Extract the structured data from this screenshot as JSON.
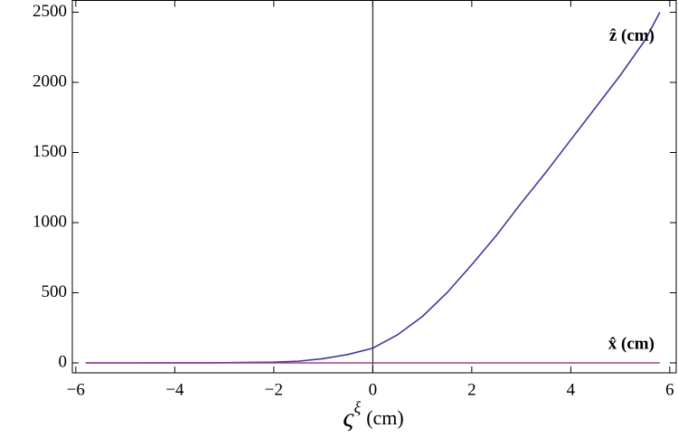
{
  "chart_data": {
    "type": "line",
    "x": [
      -5.8,
      -5,
      -4,
      -3,
      -2,
      -1.5,
      -1,
      -0.5,
      0,
      0.5,
      1,
      1.5,
      2,
      2.5,
      3,
      3.5,
      4,
      4.5,
      5,
      5.5,
      5.8
    ],
    "series": [
      {
        "name": "ẑ (cm)",
        "color": "#3c3a9a",
        "label_color": "#8a70d6",
        "values": [
          0,
          0,
          0.5,
          1.5,
          5,
          12,
          30,
          60,
          105,
          200,
          330,
          500,
          700,
          910,
          1140,
          1360,
          1590,
          1820,
          2050,
          2300,
          2500
        ]
      },
      {
        "name": "x̂ (cm)",
        "color": "#a0408c",
        "label_color": "#7a1a7a",
        "values": [
          0,
          0,
          0,
          0,
          0,
          0,
          0,
          0,
          0,
          0,
          0,
          0,
          0,
          0,
          0,
          0,
          0,
          0,
          0,
          0,
          0
        ]
      }
    ],
    "xlabel": {
      "base": "ς",
      "sup": "ξ",
      "unit": "(cm)"
    },
    "xlim": [
      -6.07,
      6.13
    ],
    "ylim": [
      -71,
      2584
    ],
    "xticks": [
      {
        "value": -6,
        "label": "−6"
      },
      {
        "value": -4,
        "label": "−4"
      },
      {
        "value": -2,
        "label": "−2"
      },
      0,
      2,
      4,
      6
    ],
    "yticks": [
      0,
      500,
      1000,
      1500,
      2000,
      2500
    ]
  }
}
